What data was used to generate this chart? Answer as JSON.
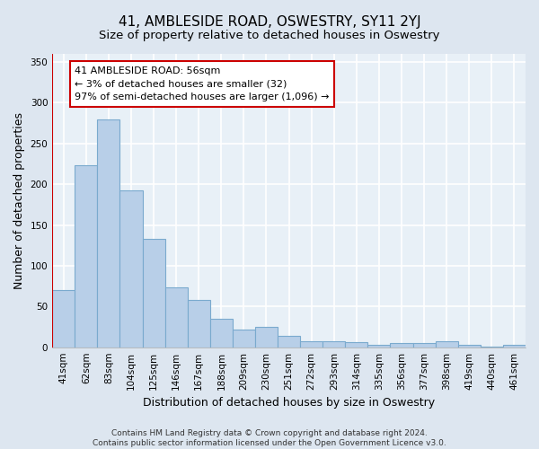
{
  "title": "41, AMBLESIDE ROAD, OSWESTRY, SY11 2YJ",
  "subtitle": "Size of property relative to detached houses in Oswestry",
  "xlabel": "Distribution of detached houses by size in Oswestry",
  "ylabel": "Number of detached properties",
  "categories": [
    "41sqm",
    "62sqm",
    "83sqm",
    "104sqm",
    "125sqm",
    "146sqm",
    "167sqm",
    "188sqm",
    "209sqm",
    "230sqm",
    "251sqm",
    "272sqm",
    "293sqm",
    "314sqm",
    "335sqm",
    "356sqm",
    "377sqm",
    "398sqm",
    "419sqm",
    "440sqm",
    "461sqm"
  ],
  "values": [
    70,
    223,
    280,
    193,
    133,
    73,
    58,
    35,
    22,
    25,
    14,
    7,
    7,
    6,
    3,
    5,
    5,
    7,
    3,
    1,
    3
  ],
  "bar_color": "#b8cfe8",
  "bar_edge_color": "#7aaace",
  "highlight_color": "#cc0000",
  "annotation_text": "41 AMBLESIDE ROAD: 56sqm\n← 3% of detached houses are smaller (32)\n97% of semi-detached houses are larger (1,096) →",
  "annotation_box_color": "#ffffff",
  "annotation_box_edge_color": "#cc0000",
  "ylim": [
    0,
    360
  ],
  "yticks": [
    0,
    50,
    100,
    150,
    200,
    250,
    300,
    350
  ],
  "bg_color": "#dde6f0",
  "plot_bg_color": "#e8f0f7",
  "footer_text": "Contains HM Land Registry data © Crown copyright and database right 2024.\nContains public sector information licensed under the Open Government Licence v3.0.",
  "title_fontsize": 11,
  "subtitle_fontsize": 9.5,
  "xlabel_fontsize": 9,
  "ylabel_fontsize": 9,
  "tick_fontsize": 7.5,
  "annotation_fontsize": 8,
  "footer_fontsize": 6.5
}
